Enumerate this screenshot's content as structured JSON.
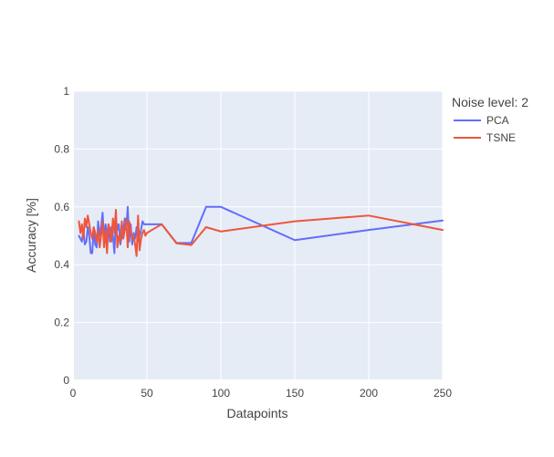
{
  "chart_data": {
    "type": "line",
    "title": "",
    "xlabel": "Datapoints",
    "ylabel": "Accuracy [%]",
    "xlim": [
      0,
      250
    ],
    "ylim": [
      0,
      1
    ],
    "x_ticks": [
      "0",
      "50",
      "100",
      "150",
      "200",
      "250"
    ],
    "y_ticks": [
      "0",
      "0.2",
      "0.4",
      "0.6",
      "0.8",
      "1"
    ],
    "grid": true,
    "legend": {
      "title": "Noise level: 2",
      "placement": "top-right outside"
    },
    "background_color": "#E5ECF6",
    "grid_color": "#FFFFFF",
    "series": [
      {
        "name": "PCA",
        "color": "#636EFA",
        "x": [
          4,
          5,
          6,
          7,
          8,
          9,
          10,
          11,
          12,
          13,
          14,
          15,
          16,
          17,
          18,
          19,
          20,
          21,
          22,
          23,
          24,
          25,
          26,
          27,
          28,
          29,
          30,
          31,
          32,
          33,
          34,
          35,
          36,
          37,
          38,
          39,
          40,
          41,
          42,
          43,
          44,
          45,
          46,
          47,
          48,
          49,
          50,
          60,
          70,
          80,
          90,
          100,
          150,
          200,
          250
        ],
        "y": [
          0.5,
          0.49,
          0.48,
          0.52,
          0.47,
          0.48,
          0.53,
          0.5,
          0.44,
          0.44,
          0.52,
          0.47,
          0.46,
          0.55,
          0.5,
          0.53,
          0.58,
          0.49,
          0.54,
          0.5,
          0.54,
          0.48,
          0.53,
          0.5,
          0.44,
          0.56,
          0.52,
          0.54,
          0.47,
          0.5,
          0.51,
          0.56,
          0.52,
          0.6,
          0.48,
          0.54,
          0.47,
          0.51,
          0.49,
          0.53,
          0.48,
          0.5,
          0.52,
          0.55,
          0.54,
          0.54,
          0.54,
          0.54,
          0.475,
          0.475,
          0.6,
          0.6,
          0.485,
          0.52,
          0.553
        ]
      },
      {
        "name": "TSNE",
        "color": "#EF553B",
        "x": [
          4,
          5,
          6,
          7,
          8,
          9,
          10,
          11,
          12,
          13,
          14,
          15,
          16,
          17,
          18,
          19,
          20,
          21,
          22,
          23,
          24,
          25,
          26,
          27,
          28,
          29,
          30,
          31,
          32,
          33,
          34,
          35,
          36,
          37,
          38,
          39,
          40,
          41,
          42,
          43,
          44,
          45,
          46,
          47,
          48,
          49,
          50,
          60,
          70,
          80,
          90,
          100,
          150,
          200,
          250
        ],
        "y": [
          0.55,
          0.51,
          0.54,
          0.49,
          0.56,
          0.53,
          0.57,
          0.54,
          0.51,
          0.49,
          0.53,
          0.51,
          0.48,
          0.52,
          0.46,
          0.5,
          0.55,
          0.46,
          0.52,
          0.44,
          0.54,
          0.52,
          0.48,
          0.56,
          0.51,
          0.59,
          0.46,
          0.5,
          0.48,
          0.55,
          0.49,
          0.52,
          0.56,
          0.46,
          0.55,
          0.52,
          0.49,
          0.5,
          0.47,
          0.43,
          0.57,
          0.45,
          0.49,
          0.51,
          0.52,
          0.5,
          0.51,
          0.54,
          0.474,
          0.468,
          0.53,
          0.515,
          0.55,
          0.57,
          0.52
        ]
      }
    ]
  }
}
